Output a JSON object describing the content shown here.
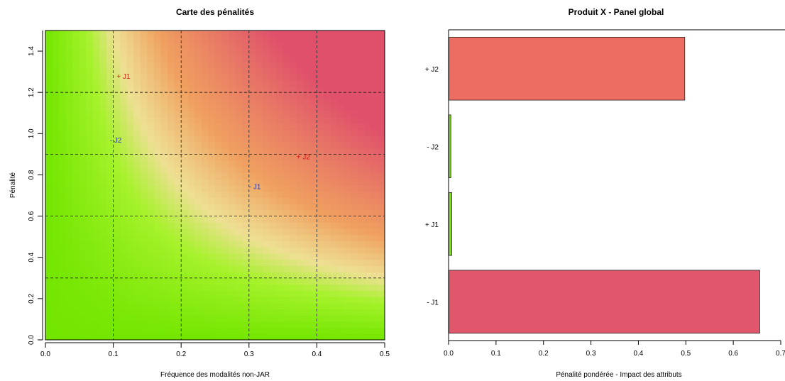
{
  "chart_data": [
    {
      "type": "heatmap",
      "title": "Carte des pénalités",
      "xlabel": "Fréquence des modalités non-JAR",
      "ylabel": "Pénalité",
      "xlim": [
        0,
        0.5
      ],
      "ylim": [
        0,
        1.5
      ],
      "x_ticks": [
        "0.0",
        "0.1",
        "0.2",
        "0.3",
        "0.4",
        "0.5"
      ],
      "y_ticks": [
        "0.0",
        "0.2",
        "0.4",
        "0.6",
        "0.8",
        "1.0",
        "1.2",
        "1.4"
      ],
      "grid_x": [
        0,
        0.1,
        0.2,
        0.3,
        0.4,
        0.5
      ],
      "grid_y": [
        0,
        0.3,
        0.6,
        0.9,
        1.2,
        1.5
      ],
      "gradient_stops": [
        {
          "value": 0.0,
          "color": "#73E600"
        },
        {
          "value": 0.09,
          "color": "#A6F22B"
        },
        {
          "value": 0.15,
          "color": "#EEE093"
        },
        {
          "value": 0.25,
          "color": "#F0A060"
        },
        {
          "value": 0.5,
          "color": "#E0506B"
        }
      ],
      "points": [
        {
          "label": "+ J1",
          "x": 0.105,
          "y": 1.28,
          "color": "#D11A1A"
        },
        {
          "label": "- J2",
          "x": 0.095,
          "y": 0.97,
          "color": "#2B3FB0"
        },
        {
          "label": "+ J2",
          "x": 0.37,
          "y": 0.89,
          "color": "#D11A1A"
        },
        {
          "label": "- J1",
          "x": 0.3,
          "y": 0.745,
          "color": "#2B3FB0"
        }
      ]
    },
    {
      "type": "bar",
      "orientation": "horizontal",
      "title": "Produit X - Panel global",
      "xlabel": "Pénalité pondérée - Impact des attributs",
      "ylabel": "",
      "xlim": [
        0,
        0.7
      ],
      "x_ticks": [
        "0.0",
        "0.1",
        "0.2",
        "0.3",
        "0.4",
        "0.5",
        "0.6",
        "0.7"
      ],
      "categories": [
        "+ J2",
        "- J2",
        "+ J1",
        "- J1"
      ],
      "values": [
        0.497,
        0.004,
        0.006,
        0.655
      ],
      "colors": [
        "#EE6D63",
        "#74E600",
        "#7BE411",
        "#E0566B"
      ]
    }
  ]
}
